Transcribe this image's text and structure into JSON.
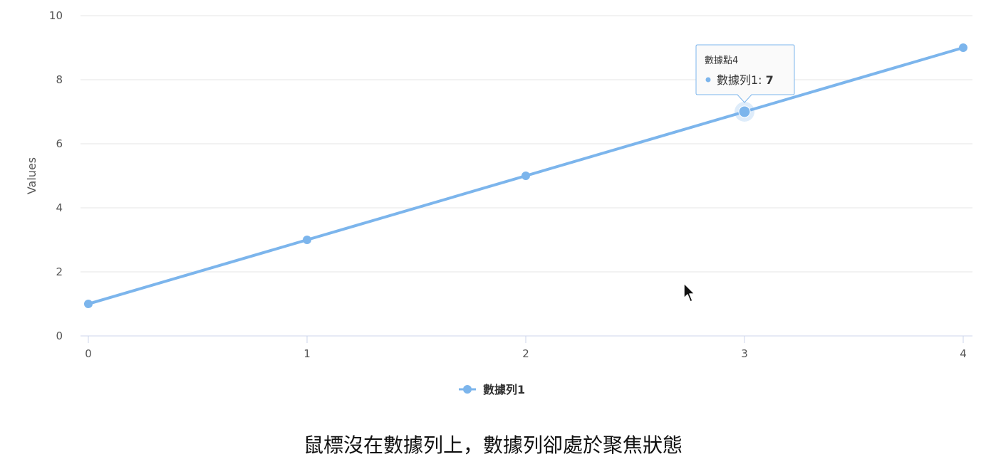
{
  "chart_data": {
    "type": "line",
    "x": [
      0,
      1,
      2,
      3,
      4
    ],
    "series": [
      {
        "name": "數據列1",
        "values": [
          1,
          3,
          5,
          7,
          9
        ],
        "color": "#7cb5ec"
      }
    ],
    "xlabel": "",
    "ylabel": "Values",
    "xlim": [
      0,
      4
    ],
    "ylim": [
      0,
      10
    ],
    "xticks": [
      "0",
      "1",
      "2",
      "3",
      "4"
    ],
    "yticks": [
      "0",
      "2",
      "4",
      "6",
      "8",
      "10"
    ],
    "grid": true,
    "legend": "bottom-center",
    "tooltip": {
      "point_index": 3,
      "header": "數據點4",
      "series_label": "數據列1: ",
      "value": "7"
    }
  },
  "colors": {
    "series": "#7cb5ec",
    "grid": "#e6e6e6",
    "axis": "#ccd6eb",
    "tooltip_border": "#7cb5ec"
  },
  "caption": "鼠標沒在數據列上，數據列卻處於聚焦狀態",
  "cursor_icon": "mouse-pointer-icon"
}
